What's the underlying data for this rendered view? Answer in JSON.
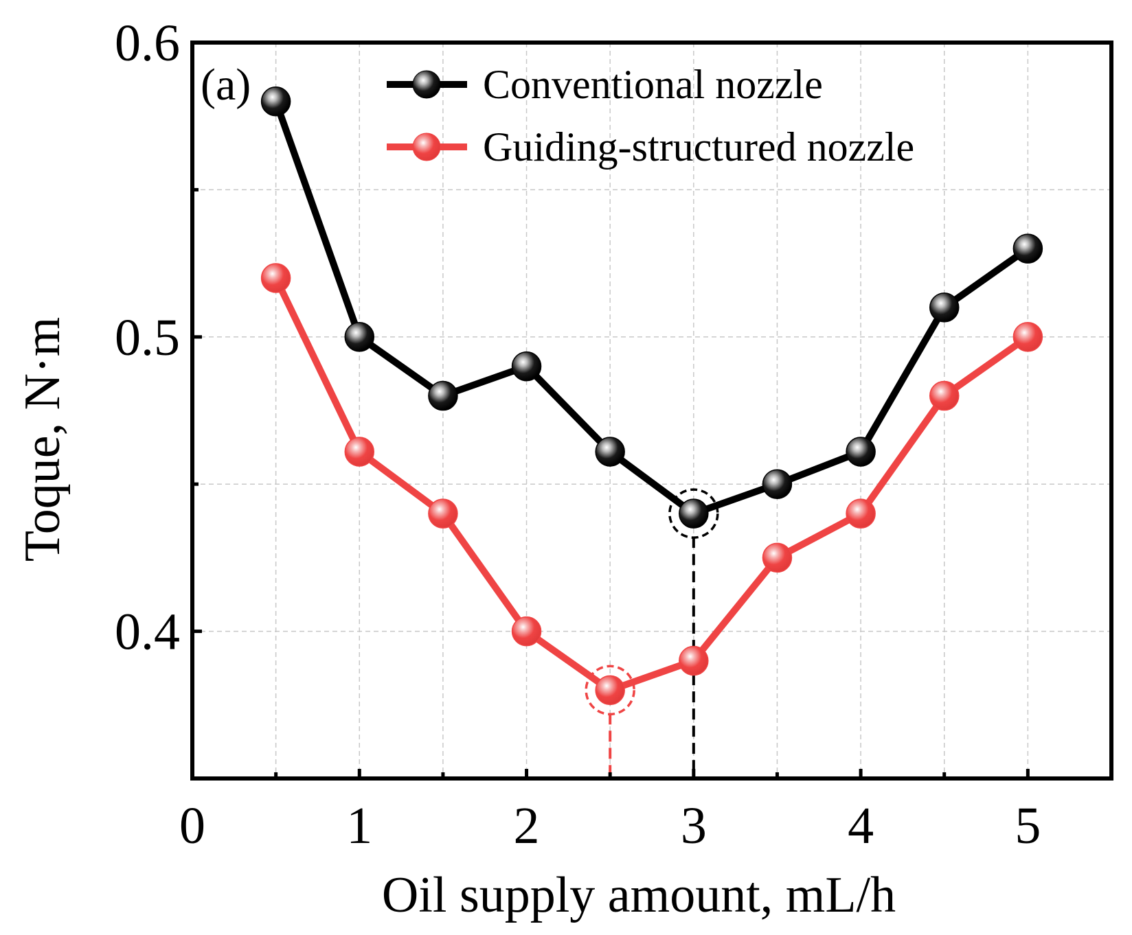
{
  "chart_data": {
    "type": "line",
    "panel_label": "(a)",
    "xlabel": "Oil supply amount, mL/h",
    "ylabel": "Toque, N·m",
    "xlim": [
      0,
      5.5
    ],
    "ylim": [
      0.35,
      0.6
    ],
    "xticks": [
      0,
      1,
      2,
      3,
      4,
      5
    ],
    "xtick_labels": [
      "0",
      "1",
      "2",
      "3",
      "4",
      "5"
    ],
    "x_minor_ticks": [
      0.5,
      1.5,
      2.5,
      3.5,
      4.5
    ],
    "yticks": [
      0.4,
      0.5,
      0.6
    ],
    "ytick_labels": [
      "0.4",
      "0.5",
      "0.6"
    ],
    "y_minor_ticks": [
      0.45,
      0.55
    ],
    "grid": true,
    "legend_position": "top-right",
    "x": [
      0.5,
      1,
      1.5,
      2,
      2.5,
      3,
      3.5,
      4,
      4.5,
      5
    ],
    "series": [
      {
        "name": "Conventional nozzle",
        "color": "#000000",
        "values": [
          0.58,
          0.5,
          0.48,
          0.49,
          0.461,
          0.44,
          0.45,
          0.461,
          0.51,
          0.53
        ]
      },
      {
        "name": "Guiding-structured nozzle",
        "color": "#ef4444",
        "values": [
          0.52,
          0.461,
          0.44,
          0.4,
          0.38,
          0.39,
          0.425,
          0.44,
          0.48,
          0.5
        ]
      }
    ],
    "annotations": [
      {
        "type": "minimum-marker",
        "series": "Conventional nozzle",
        "x": 3,
        "y": 0.44,
        "color": "#000000"
      },
      {
        "type": "minimum-marker",
        "series": "Guiding-structured nozzle",
        "x": 2.5,
        "y": 0.38,
        "color": "#ef4444"
      }
    ]
  }
}
